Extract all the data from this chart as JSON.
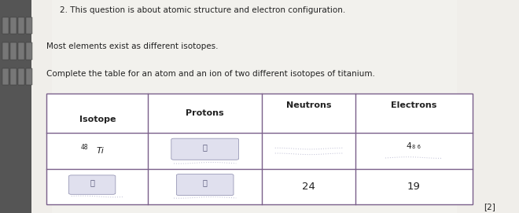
{
  "title_line1": "2. This question is about atomic structure and electron configuration.",
  "line2": "Most elements exist as different isotopes.",
  "line3": "Complete the table for an atom and an ion of two different isotopes of titanium.",
  "col_headers": [
    "Isotope",
    "Protons",
    "Neutrons",
    "Electrons"
  ],
  "mark": "[2]",
  "bg_paper": "#e8e6e0",
  "bg_left": "#6a6a6a",
  "table_line_color": "#7a5f8a",
  "text_color": "#222222",
  "header_fontsize": 8,
  "body_fontsize": 8.5,
  "title_fontsize": 7.5,
  "squiggle_color": "#aaaacc"
}
